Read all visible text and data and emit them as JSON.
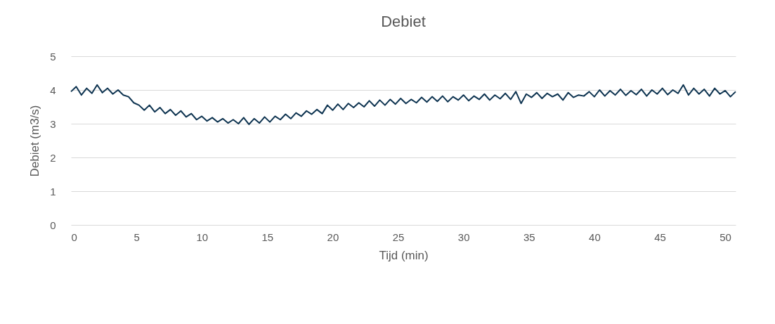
{
  "chart_data": {
    "type": "line",
    "title": "Debiet",
    "xlabel": "Tijd (min)",
    "ylabel": "Debiet (m3/s)",
    "x": [
      0,
      0.4,
      0.8,
      1.2,
      1.6,
      2,
      2.4,
      2.8,
      3.2,
      3.6,
      4,
      4.4,
      4.8,
      5.2,
      5.6,
      6,
      6.4,
      6.8,
      7.2,
      7.6,
      8,
      8.4,
      8.8,
      9.2,
      9.6,
      10,
      10.4,
      10.8,
      11.2,
      11.6,
      12,
      12.4,
      12.8,
      13.2,
      13.6,
      14,
      14.4,
      14.8,
      15.2,
      15.6,
      16,
      16.4,
      16.8,
      17.2,
      17.6,
      18,
      18.4,
      18.8,
      19.2,
      19.6,
      20,
      20.4,
      20.8,
      21.2,
      21.6,
      22,
      22.4,
      22.8,
      23.2,
      23.6,
      24,
      24.4,
      24.8,
      25.2,
      25.6,
      26,
      26.4,
      26.8,
      27.2,
      27.6,
      28,
      28.4,
      28.8,
      29.2,
      29.6,
      30,
      30.4,
      30.8,
      31.2,
      31.6,
      32,
      32.4,
      32.8,
      33.2,
      33.6,
      34,
      34.4,
      34.8,
      35.2,
      35.6,
      36,
      36.4,
      36.8,
      37.2,
      37.6,
      38,
      38.4,
      38.8,
      39.2,
      39.6,
      40,
      40.4,
      40.8,
      41.2,
      41.6,
      42,
      42.4,
      42.8,
      43.2,
      43.6,
      44,
      44.4,
      44.8,
      45.2,
      45.6,
      46,
      46.4,
      46.8,
      47.2,
      47.6,
      48,
      48.4,
      48.8,
      49.2,
      49.6,
      50,
      50.4,
      50.8
    ],
    "series": [
      {
        "color": "#0d3350",
        "values": [
          3.95,
          4.1,
          3.85,
          4.05,
          3.9,
          4.15,
          3.92,
          4.05,
          3.88,
          4.0,
          3.85,
          3.8,
          3.62,
          3.55,
          3.4,
          3.55,
          3.35,
          3.48,
          3.3,
          3.42,
          3.25,
          3.38,
          3.2,
          3.3,
          3.12,
          3.22,
          3.08,
          3.18,
          3.05,
          3.15,
          3.02,
          3.12,
          3.0,
          3.18,
          2.98,
          3.15,
          3.02,
          3.2,
          3.05,
          3.22,
          3.12,
          3.28,
          3.15,
          3.32,
          3.22,
          3.38,
          3.28,
          3.42,
          3.3,
          3.55,
          3.4,
          3.58,
          3.42,
          3.6,
          3.48,
          3.62,
          3.5,
          3.68,
          3.52,
          3.7,
          3.55,
          3.72,
          3.58,
          3.75,
          3.6,
          3.72,
          3.62,
          3.78,
          3.64,
          3.8,
          3.66,
          3.82,
          3.65,
          3.8,
          3.7,
          3.85,
          3.68,
          3.82,
          3.72,
          3.88,
          3.7,
          3.85,
          3.74,
          3.9,
          3.72,
          3.95,
          3.6,
          3.88,
          3.78,
          3.92,
          3.75,
          3.9,
          3.8,
          3.88,
          3.7,
          3.92,
          3.78,
          3.85,
          3.82,
          3.95,
          3.8,
          4.0,
          3.82,
          3.98,
          3.85,
          4.02,
          3.84,
          3.98,
          3.86,
          4.02,
          3.82,
          4.0,
          3.88,
          4.05,
          3.86,
          4.0,
          3.9,
          4.15,
          3.85,
          4.05,
          3.88,
          4.02,
          3.82,
          4.05,
          3.88,
          3.98,
          3.8,
          3.95
        ]
      }
    ],
    "xlim": [
      0,
      50.8
    ],
    "xticks": [
      0,
      5,
      10,
      15,
      20,
      25,
      30,
      35,
      40,
      45,
      50
    ],
    "ylim": [
      0,
      5
    ],
    "yticks": [
      0,
      1,
      2,
      3,
      4,
      5
    ],
    "grid": "y",
    "legend": false,
    "marker": "none",
    "line_style": "solid"
  }
}
